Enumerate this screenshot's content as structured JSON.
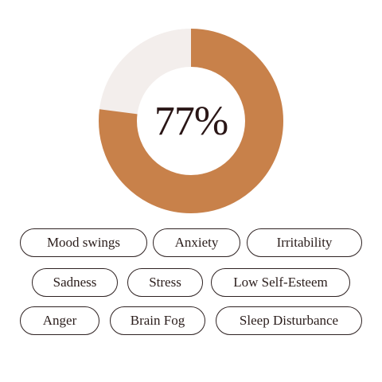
{
  "donut": {
    "percent_label": "77%",
    "value_percent": 77,
    "fill_color": "#C8814A",
    "remainder_color": "#F3EEEC"
  },
  "tags": [
    {
      "label": "Mood swings"
    },
    {
      "label": "Anxiety"
    },
    {
      "label": "Irritability"
    },
    {
      "label": "Sadness"
    },
    {
      "label": "Stress"
    },
    {
      "label": "Low Self-Esteem"
    },
    {
      "label": "Anger"
    },
    {
      "label": "Brain Fog"
    },
    {
      "label": "Sleep Disturbance"
    }
  ]
}
